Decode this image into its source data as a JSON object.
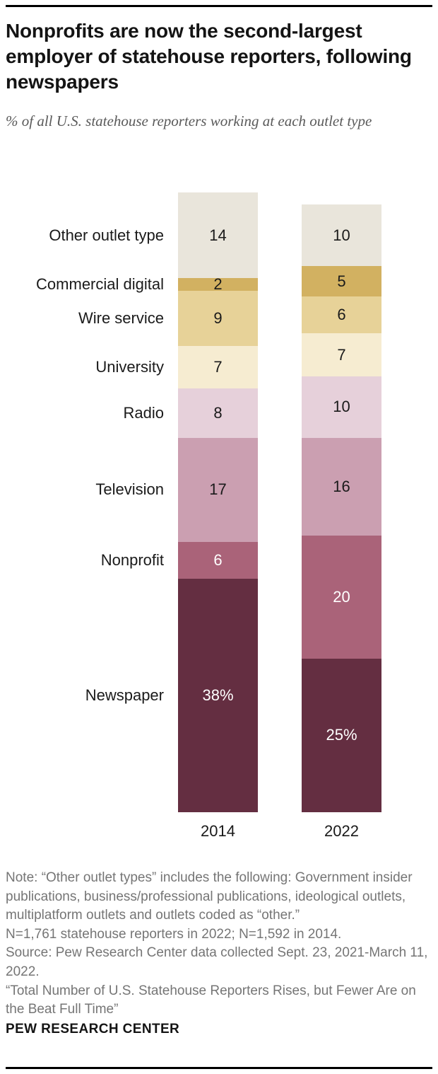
{
  "header": {
    "title": "Nonprofits are now the second-largest employer of statehouse reporters, following newspapers",
    "subtitle": "% of all U.S. statehouse reporters working at each outlet type"
  },
  "chart_data": {
    "type": "bar",
    "variant": "stacked-vertical-column",
    "unit": "% of all U.S. statehouse reporters",
    "categories": [
      "2014",
      "2022"
    ],
    "series": [
      {
        "name": "Other outlet type",
        "values": [
          14,
          10
        ],
        "labels": [
          "14",
          "10"
        ],
        "color": "#e9e5db",
        "text_color": "#1a1a1a"
      },
      {
        "name": "Commercial digital",
        "values": [
          2,
          5
        ],
        "labels": [
          "2",
          "5"
        ],
        "color": "#d2b161",
        "text_color": "#1a1a1a"
      },
      {
        "name": "Wire service",
        "values": [
          9,
          6
        ],
        "labels": [
          "9",
          "6"
        ],
        "color": "#e7d298",
        "text_color": "#1a1a1a"
      },
      {
        "name": "University",
        "values": [
          7,
          7
        ],
        "labels": [
          "7",
          "7"
        ],
        "color": "#f6ecd1",
        "text_color": "#1a1a1a"
      },
      {
        "name": "Radio",
        "values": [
          8,
          10
        ],
        "labels": [
          "8",
          "10"
        ],
        "color": "#e6d0da",
        "text_color": "#1a1a1a"
      },
      {
        "name": "Television",
        "values": [
          17,
          16
        ],
        "labels": [
          "17",
          "16"
        ],
        "color": "#cb9fb1",
        "text_color": "#1a1a1a"
      },
      {
        "name": "Nonprofit",
        "values": [
          6,
          20
        ],
        "labels": [
          "6",
          "20"
        ],
        "color": "#aa6379",
        "text_color": "#ffffff"
      },
      {
        "name": "Newspaper",
        "values": [
          38,
          25
        ],
        "labels": [
          "38%",
          "25%"
        ],
        "color": "#642e41",
        "text_color": "#ffffff"
      }
    ],
    "totals": [
      101,
      99
    ],
    "grid": false,
    "legend_position": "left-inline-category-labels"
  },
  "notes": {
    "note": "Note: “Other outlet types” includes the following: Government insider publications, business/professional publications, ideological outlets, multiplatform outlets and outlets coded as “other.”",
    "sample": "N=1,761 statehouse reporters in 2022; N=1,592 in 2014.",
    "source": "Source: Pew Research Center data collected Sept. 23, 2021-March 11, 2022.",
    "report_title": "“Total Number of U.S. Statehouse Reporters Rises, but Fewer Are on the Beat Full Time”"
  },
  "footer": {
    "brand": "PEW RESEARCH CENTER"
  }
}
